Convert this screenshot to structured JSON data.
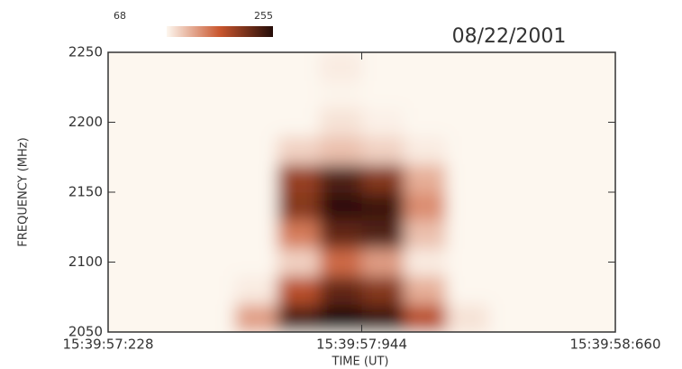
{
  "chart_data": {
    "type": "heatmap",
    "date": "08/22/2001",
    "x_label": "TIME (UT)",
    "y_label": "FREQUENCY (MHz)",
    "xlim": [
      0,
      1.432
    ],
    "xticks": [
      {
        "value": 0,
        "label": "15:39:57:228"
      },
      {
        "value": 0.716,
        "label": "15:39:57:944"
      },
      {
        "value": 1.432,
        "label": "15:39:58:660"
      }
    ],
    "ylim": [
      2050,
      2250
    ],
    "yticks": [
      2050,
      2100,
      2150,
      2200,
      2250
    ],
    "zlim": [
      68,
      255
    ],
    "colors": [
      "#fdf7ef",
      "#c9562e",
      "#240c08"
    ],
    "x": [
      0.0597,
      0.179,
      0.2983,
      0.4177,
      0.537,
      0.6563,
      0.7757,
      0.895,
      1.0143,
      1.1337,
      1.253,
      1.3723
    ],
    "y": [
      2060,
      2080,
      2100,
      2120,
      2140,
      2160,
      2180,
      2200,
      2220,
      2240
    ],
    "z": [
      [
        68,
        68,
        68,
        120,
        230,
        255,
        240,
        170,
        80,
        68,
        68,
        68
      ],
      [
        68,
        68,
        68,
        75,
        170,
        220,
        200,
        110,
        68,
        68,
        68,
        68
      ],
      [
        68,
        68,
        68,
        68,
        90,
        150,
        120,
        75,
        68,
        68,
        68,
        68
      ],
      [
        68,
        68,
        68,
        68,
        140,
        220,
        230,
        100,
        68,
        68,
        68,
        68
      ],
      [
        68,
        68,
        68,
        68,
        200,
        250,
        240,
        130,
        68,
        68,
        68,
        68
      ],
      [
        68,
        68,
        68,
        68,
        190,
        230,
        200,
        110,
        68,
        68,
        68,
        68
      ],
      [
        68,
        68,
        68,
        68,
        90,
        100,
        90,
        75,
        68,
        68,
        68,
        68
      ],
      [
        68,
        68,
        68,
        68,
        68,
        80,
        72,
        68,
        68,
        68,
        68,
        68
      ],
      [
        68,
        68,
        68,
        68,
        68,
        70,
        68,
        68,
        68,
        68,
        68,
        68
      ],
      [
        68,
        68,
        68,
        68,
        68,
        75,
        68,
        68,
        68,
        68,
        68,
        68
      ]
    ]
  }
}
